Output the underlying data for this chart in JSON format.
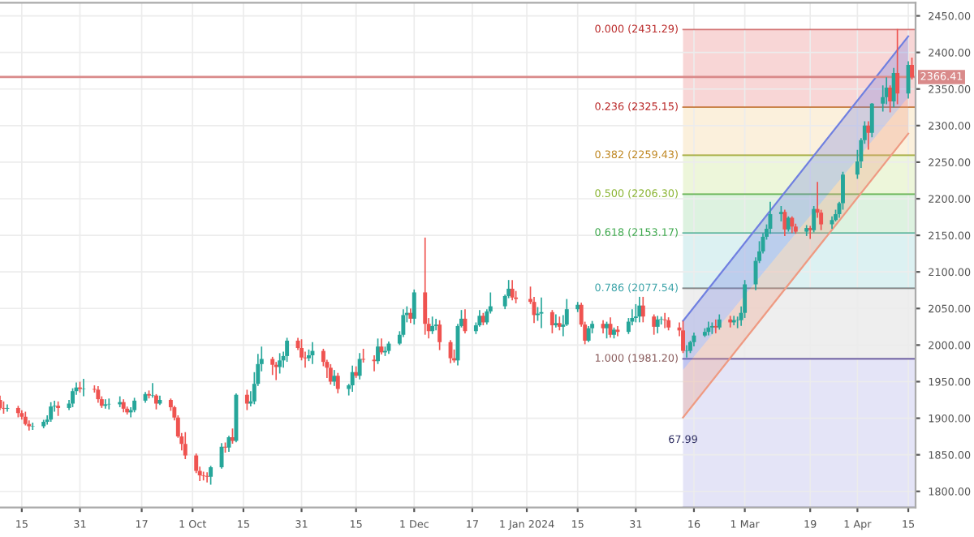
{
  "chart_data": {
    "type": "candlestick",
    "x": [
      "2023-08-09",
      "2023-08-10",
      "2023-08-11",
      "2023-08-14",
      "2023-08-15",
      "2023-08-16",
      "2023-08-17",
      "2023-08-18",
      "2023-08-21",
      "2023-08-22",
      "2023-08-23",
      "2023-08-24",
      "2023-08-25",
      "2023-08-28",
      "2023-08-29",
      "2023-08-30",
      "2023-08-31",
      "2023-09-01",
      "2023-09-04",
      "2023-09-05",
      "2023-09-06",
      "2023-09-07",
      "2023-09-08",
      "2023-09-11",
      "2023-09-12",
      "2023-09-13",
      "2023-09-14",
      "2023-09-15",
      "2023-09-18",
      "2023-09-19",
      "2023-09-20",
      "2023-09-21",
      "2023-09-22",
      "2023-09-25",
      "2023-09-26",
      "2023-09-27",
      "2023-09-28",
      "2023-09-29",
      "2023-10-02",
      "2023-10-03",
      "2023-10-04",
      "2023-10-05",
      "2023-10-06",
      "2023-10-09",
      "2023-10-10",
      "2023-10-11",
      "2023-10-12",
      "2023-10-13",
      "2023-10-16",
      "2023-10-17",
      "2023-10-18",
      "2023-10-19",
      "2023-10-20",
      "2023-10-23",
      "2023-10-24",
      "2023-10-25",
      "2023-10-26",
      "2023-10-27",
      "2023-10-30",
      "2023-10-31",
      "2023-11-01",
      "2023-11-02",
      "2023-11-03",
      "2023-11-06",
      "2023-11-07",
      "2023-11-08",
      "2023-11-09",
      "2023-11-10",
      "2023-11-13",
      "2023-11-14",
      "2023-11-15",
      "2023-11-16",
      "2023-11-17",
      "2023-11-20",
      "2023-11-21",
      "2023-11-22",
      "2023-11-23",
      "2023-11-24",
      "2023-11-27",
      "2023-11-28",
      "2023-11-29",
      "2023-11-30",
      "2023-12-01",
      "2023-12-04",
      "2023-12-05",
      "2023-12-06",
      "2023-12-07",
      "2023-12-08",
      "2023-12-11",
      "2023-12-12",
      "2023-12-13",
      "2023-12-14",
      "2023-12-15",
      "2023-12-18",
      "2023-12-19",
      "2023-12-20",
      "2023-12-21",
      "2023-12-22",
      "2023-12-26",
      "2023-12-27",
      "2023-12-28",
      "2023-12-29",
      "2024-01-02",
      "2024-01-03",
      "2024-01-04",
      "2024-01-05",
      "2024-01-08",
      "2024-01-09",
      "2024-01-10",
      "2024-01-11",
      "2024-01-12",
      "2024-01-15",
      "2024-01-16",
      "2024-01-17",
      "2024-01-18",
      "2024-01-19",
      "2024-01-22",
      "2024-01-23",
      "2024-01-24",
      "2024-01-25",
      "2024-01-26",
      "2024-01-29",
      "2024-01-30",
      "2024-01-31",
      "2024-02-01",
      "2024-02-02",
      "2024-02-05",
      "2024-02-06",
      "2024-02-07",
      "2024-02-08",
      "2024-02-09",
      "2024-02-12",
      "2024-02-13",
      "2024-02-14",
      "2024-02-15",
      "2024-02-16",
      "2024-02-19",
      "2024-02-20",
      "2024-02-21",
      "2024-02-22",
      "2024-02-23",
      "2024-02-26",
      "2024-02-27",
      "2024-02-28",
      "2024-02-29",
      "2024-03-01",
      "2024-03-04",
      "2024-03-05",
      "2024-03-06",
      "2024-03-07",
      "2024-03-08",
      "2024-03-11",
      "2024-03-12",
      "2024-03-13",
      "2024-03-14",
      "2024-03-15",
      "2024-03-18",
      "2024-03-19",
      "2024-03-20",
      "2024-03-21",
      "2024-03-22",
      "2024-03-25",
      "2024-03-26",
      "2024-03-27",
      "2024-03-28",
      "2024-04-01",
      "2024-04-02",
      "2024-04-03",
      "2024-04-04",
      "2024-04-05",
      "2024-04-08",
      "2024-04-09",
      "2024-04-10",
      "2024-04-11",
      "2024-04-12",
      "2024-04-15",
      "2024-04-16"
    ],
    "ohlc": [
      [
        1925,
        1930,
        1912,
        1914
      ],
      [
        1914,
        1922,
        1907,
        1913
      ],
      [
        1913,
        1918,
        1910,
        1914
      ],
      [
        1914,
        1916,
        1902,
        1907
      ],
      [
        1907,
        1910,
        1899,
        1902
      ],
      [
        1902,
        1908,
        1891,
        1892
      ],
      [
        1892,
        1896,
        1884,
        1889
      ],
      [
        1889,
        1893,
        1885,
        1889
      ],
      [
        1889,
        1897,
        1887,
        1895
      ],
      [
        1895,
        1903,
        1892,
        1898
      ],
      [
        1898,
        1921,
        1896,
        1916
      ],
      [
        1916,
        1923,
        1910,
        1917
      ],
      [
        1917,
        1922,
        1904,
        1914
      ],
      [
        1914,
        1924,
        1912,
        1920
      ],
      [
        1920,
        1940,
        1916,
        1937
      ],
      [
        1937,
        1948,
        1933,
        1942
      ],
      [
        1942,
        1949,
        1936,
        1940
      ],
      [
        1940,
        1953,
        1931,
        1940
      ],
      [
        1940,
        1944,
        1936,
        1939
      ],
      [
        1939,
        1943,
        1922,
        1926
      ],
      [
        1926,
        1929,
        1915,
        1917
      ],
      [
        1917,
        1925,
        1914,
        1919
      ],
      [
        1919,
        1926,
        1913,
        1919
      ],
      [
        1919,
        1929,
        1916,
        1922
      ],
      [
        1922,
        1925,
        1909,
        1913
      ],
      [
        1913,
        1915,
        1906,
        1908
      ],
      [
        1908,
        1914,
        1902,
        1911
      ],
      [
        1911,
        1927,
        1909,
        1924
      ],
      [
        1924,
        1935,
        1922,
        1933
      ],
      [
        1933,
        1937,
        1928,
        1931
      ],
      [
        1931,
        1947,
        1929,
        1931
      ],
      [
        1931,
        1932,
        1913,
        1920
      ],
      [
        1920,
        1930,
        1919,
        1925
      ],
      [
        1925,
        1926,
        1911,
        1915
      ],
      [
        1915,
        1916,
        1898,
        1901
      ],
      [
        1901,
        1903,
        1874,
        1875
      ],
      [
        1875,
        1879,
        1857,
        1865
      ],
      [
        1865,
        1880,
        1845,
        1849
      ],
      [
        1849,
        1851,
        1826,
        1828
      ],
      [
        1828,
        1833,
        1815,
        1822
      ],
      [
        1822,
        1826,
        1816,
        1821
      ],
      [
        1821,
        1825,
        1813,
        1820
      ],
      [
        1820,
        1834,
        1810,
        1833
      ],
      [
        1833,
        1865,
        1832,
        1861
      ],
      [
        1861,
        1866,
        1854,
        1860
      ],
      [
        1860,
        1875,
        1855,
        1874
      ],
      [
        1874,
        1885,
        1866,
        1869
      ],
      [
        1869,
        1933,
        1868,
        1932
      ],
      [
        1932,
        1938,
        1912,
        1920
      ],
      [
        1920,
        1936,
        1917,
        1923
      ],
      [
        1923,
        1962,
        1920,
        1947
      ],
      [
        1947,
        1987,
        1945,
        1974
      ],
      [
        1974,
        1997,
        1965,
        1981
      ],
      [
        1981,
        1983,
        1960,
        1973
      ],
      [
        1973,
        1976,
        1953,
        1970
      ],
      [
        1970,
        1988,
        1962,
        1979
      ],
      [
        1979,
        1990,
        1970,
        1985
      ],
      [
        1985,
        2009,
        1978,
        2006
      ],
      [
        2006,
        2009,
        1994,
        1996
      ],
      [
        1996,
        2007,
        1980,
        1983
      ],
      [
        1983,
        1990,
        1970,
        1982
      ],
      [
        1982,
        1993,
        1979,
        1986
      ],
      [
        1986,
        2003,
        1975,
        1992
      ],
      [
        1992,
        1994,
        1972,
        1977
      ],
      [
        1977,
        1979,
        1956,
        1969
      ],
      [
        1969,
        1973,
        1947,
        1950
      ],
      [
        1950,
        1965,
        1945,
        1958
      ],
      [
        1958,
        1961,
        1935,
        1940
      ],
      [
        1940,
        1946,
        1932,
        1945
      ],
      [
        1945,
        1971,
        1937,
        1963
      ],
      [
        1963,
        1970,
        1956,
        1958
      ],
      [
        1958,
        1988,
        1954,
        1981
      ],
      [
        1981,
        1994,
        1977,
        1980
      ],
      [
        1980,
        1985,
        1965,
        1978
      ],
      [
        1978,
        2008,
        1975,
        1998
      ],
      [
        1998,
        2008,
        1988,
        1990
      ],
      [
        1990,
        1997,
        1986,
        1992
      ],
      [
        1992,
        2004,
        1989,
        2002
      ],
      [
        2002,
        2018,
        2001,
        2014
      ],
      [
        2014,
        2048,
        2012,
        2041
      ],
      [
        2041,
        2052,
        2032,
        2044
      ],
      [
        2044,
        2049,
        2031,
        2036
      ],
      [
        2036,
        2075,
        2029,
        2072
      ],
      [
        2072,
        2146,
        2015,
        2029
      ],
      [
        2029,
        2036,
        2010,
        2019
      ],
      [
        2019,
        2038,
        2016,
        2026
      ],
      [
        2026,
        2035,
        2021,
        2028
      ],
      [
        2028,
        2033,
        1994,
        2004
      ],
      [
        2004,
        2006,
        1976,
        1982
      ],
      [
        1982,
        1993,
        1977,
        1979
      ],
      [
        1979,
        2028,
        1973,
        2026
      ],
      [
        2026,
        2047,
        2025,
        2036
      ],
      [
        2036,
        2048,
        2017,
        2019
      ],
      [
        2019,
        2030,
        2016,
        2027
      ],
      [
        2027,
        2047,
        2026,
        2040
      ],
      [
        2040,
        2043,
        2028,
        2031
      ],
      [
        2031,
        2048,
        2029,
        2046
      ],
      [
        2046,
        2071,
        2044,
        2053
      ],
      [
        2053,
        2068,
        2050,
        2067
      ],
      [
        2067,
        2088,
        2065,
        2077
      ],
      [
        2077,
        2088,
        2062,
        2065
      ],
      [
        2065,
        2073,
        2058,
        2063
      ],
      [
        2063,
        2079,
        2057,
        2059
      ],
      [
        2059,
        2065,
        2031,
        2041
      ],
      [
        2041,
        2051,
        2034,
        2043
      ],
      [
        2043,
        2064,
        2024,
        2045
      ],
      [
        2045,
        2047,
        2017,
        2027
      ],
      [
        2027,
        2041,
        2025,
        2030
      ],
      [
        2030,
        2038,
        2021,
        2025
      ],
      [
        2025,
        2040,
        2013,
        2028
      ],
      [
        2028,
        2062,
        2027,
        2049
      ],
      [
        2049,
        2058,
        2046,
        2055
      ],
      [
        2055,
        2057,
        2026,
        2028
      ],
      [
        2028,
        2031,
        2002,
        2006
      ],
      [
        2006,
        2025,
        2005,
        2023
      ],
      [
        2023,
        2032,
        2017,
        2029
      ],
      [
        2029,
        2033,
        2017,
        2023
      ],
      [
        2023,
        2031,
        2010,
        2029
      ],
      [
        2029,
        2037,
        2011,
        2014
      ],
      [
        2014,
        2023,
        2010,
        2021
      ],
      [
        2021,
        2025,
        2013,
        2018
      ],
      [
        2018,
        2036,
        2016,
        2032
      ],
      [
        2032,
        2048,
        2028,
        2037
      ],
      [
        2037,
        2055,
        2032,
        2039
      ],
      [
        2039,
        2065,
        2032,
        2054
      ],
      [
        2054,
        2065,
        2032,
        2039
      ],
      [
        2039,
        2041,
        2015,
        2025
      ],
      [
        2025,
        2039,
        2017,
        2035
      ],
      [
        2035,
        2038,
        2029,
        2035
      ],
      [
        2035,
        2043,
        2024,
        2034
      ],
      [
        2034,
        2037,
        2021,
        2024
      ],
      [
        2024,
        2030,
        2013,
        2020
      ],
      [
        2020,
        2032,
        1990,
        1992
      ],
      [
        1992,
        1999,
        1984,
        1992
      ],
      [
        1992,
        2005,
        1990,
        2004
      ],
      [
        2004,
        2016,
        1999,
        2013
      ],
      [
        2013,
        2022,
        2012,
        2018
      ],
      [
        2018,
        2031,
        2014,
        2024
      ],
      [
        2024,
        2030,
        2016,
        2026
      ],
      [
        2026,
        2034,
        2017,
        2024
      ],
      [
        2024,
        2041,
        2022,
        2035
      ],
      [
        2035,
        2039,
        2025,
        2031
      ],
      [
        2031,
        2039,
        2028,
        2034
      ],
      [
        2034,
        2038,
        2024,
        2034
      ],
      [
        2034,
        2052,
        2027,
        2044
      ],
      [
        2044,
        2088,
        2038,
        2083
      ],
      [
        2083,
        2119,
        2076,
        2115
      ],
      [
        2115,
        2141,
        2113,
        2128
      ],
      [
        2128,
        2152,
        2126,
        2148
      ],
      [
        2148,
        2164,
        2145,
        2159
      ],
      [
        2159,
        2195,
        2153,
        2179
      ],
      [
        2179,
        2189,
        2170,
        2182
      ],
      [
        2182,
        2184,
        2150,
        2158
      ],
      [
        2158,
        2175,
        2156,
        2174
      ],
      [
        2174,
        2175,
        2154,
        2162
      ],
      [
        2162,
        2165,
        2153,
        2155
      ],
      [
        2155,
        2163,
        2150,
        2160
      ],
      [
        2160,
        2162,
        2146,
        2157
      ],
      [
        2157,
        2189,
        2155,
        2186
      ],
      [
        2186,
        2222,
        2175,
        2181
      ],
      [
        2181,
        2184,
        2158,
        2165
      ],
      [
        2165,
        2175,
        2160,
        2171
      ],
      [
        2171,
        2184,
        2170,
        2179
      ],
      [
        2179,
        2195,
        2175,
        2194
      ],
      [
        2194,
        2236,
        2186,
        2233
      ],
      [
        2233,
        2266,
        2228,
        2251
      ],
      [
        2251,
        2282,
        2243,
        2280
      ],
      [
        2280,
        2305,
        2276,
        2300
      ],
      [
        2300,
        2305,
        2268,
        2290
      ],
      [
        2290,
        2330,
        2285,
        2330
      ],
      [
        2330,
        2354,
        2320,
        2339
      ],
      [
        2339,
        2365,
        2330,
        2352
      ],
      [
        2352,
        2354,
        2319,
        2333
      ],
      [
        2333,
        2378,
        2326,
        2372
      ],
      [
        2372,
        2431,
        2330,
        2344
      ],
      [
        2344,
        2387,
        2338,
        2383
      ],
      [
        2383,
        2392,
        2364,
        2366
      ]
    ],
    "series": [
      {
        "type": "line",
        "x": [
          "2024-02-13",
          "2024-04-15"
        ],
        "values": [
          2033,
          2422
        ],
        "lower": [
          1966,
          2339
        ],
        "upper": [
          2033,
          2422
        ],
        "color": "#6f7fe0"
      },
      {
        "type": "line",
        "x": [
          "2024-02-13",
          "2024-04-15"
        ],
        "values": [
          1901,
          2289
        ],
        "lower": [
          1901,
          2289
        ],
        "upper": [
          1966,
          2339
        ],
        "color": "#ee9a82"
      }
    ],
    "bands": [
      {
        "axis": "y",
        "from": 2325.15,
        "to": 2431.29,
        "color": "#f8d6d6"
      },
      {
        "axis": "y",
        "from": 2259.43,
        "to": 2325.15,
        "color": "#fbf0dc"
      },
      {
        "axis": "y",
        "from": 2206.3,
        "to": 2259.43,
        "color": "#edf6da"
      },
      {
        "axis": "y",
        "from": 2153.17,
        "to": 2206.3,
        "color": "#ddf2e0"
      },
      {
        "axis": "y",
        "from": 2077.54,
        "to": 2153.17,
        "color": "#dcf1f2"
      },
      {
        "axis": "y",
        "from": 1981.2,
        "to": 2077.54,
        "color": "#eeeeee"
      },
      {
        "axis": "y",
        "from": 1778,
        "to": 1981.2,
        "color": "#e4e4f7"
      }
    ],
    "ref_lines": [
      {
        "axis": "y",
        "value": 2366.41,
        "label": "2366.41",
        "color": "#d98a8a"
      }
    ],
    "annotations": [
      {
        "text": "0.000 (2431.29)",
        "x": "2024-02-13",
        "y": 2431.29
      },
      {
        "text": "0.236 (2325.15)",
        "x": "2024-02-13",
        "y": 2325.15
      },
      {
        "text": "0.382 (2259.43)",
        "x": "2024-02-13",
        "y": 2259.43
      },
      {
        "text": "0.500 (2206.30)",
        "x": "2024-02-13",
        "y": 2206.3
      },
      {
        "text": "0.618 (2153.17)",
        "x": "2024-02-13",
        "y": 2153.17
      },
      {
        "text": "0.786 (2077.54)",
        "x": "2024-02-13",
        "y": 2077.54
      },
      {
        "text": "1.000 (1981.20)",
        "x": "2024-02-13",
        "y": 1981.2
      },
      {
        "text": "67.99",
        "x": "2024-02-13",
        "y": 1901
      }
    ],
    "xlim": [
      "2023-08-09",
      "2024-04-17"
    ],
    "xticks": [
      {
        "value": "2023-08-15",
        "label": "15"
      },
      {
        "value": "2023-08-31",
        "label": "31"
      },
      {
        "value": "2023-09-17",
        "label": "17"
      },
      {
        "value": "2023-10-01",
        "label": "1 Oct"
      },
      {
        "value": "2023-10-15",
        "label": "15"
      },
      {
        "value": "2023-10-31",
        "label": "31"
      },
      {
        "value": "2023-11-15",
        "label": "15"
      },
      {
        "value": "2023-12-01",
        "label": "1 Dec"
      },
      {
        "value": "2023-12-17",
        "label": "17"
      },
      {
        "value": "2024-01-01",
        "label": "1 Jan 2024"
      },
      {
        "value": "2024-01-15",
        "label": "15"
      },
      {
        "value": "2024-01-31",
        "label": "31"
      },
      {
        "value": "2024-02-16",
        "label": "16"
      },
      {
        "value": "2024-03-01",
        "label": "1 Mar"
      },
      {
        "value": "2024-03-19",
        "label": "19"
      },
      {
        "value": "2024-04-01",
        "label": "1 Apr"
      },
      {
        "value": "2024-04-15",
        "label": "15"
      }
    ],
    "ylim": [
      1778,
      2468
    ],
    "yticks": [
      {
        "value": 1800,
        "label": "1800.00"
      },
      {
        "value": 1850,
        "label": "1850.00"
      },
      {
        "value": 1900,
        "label": "1900.00"
      },
      {
        "value": 1950,
        "label": "1950.00"
      },
      {
        "value": 2000,
        "label": "2000.00"
      },
      {
        "value": 2050,
        "label": "2050.00"
      },
      {
        "value": 2100,
        "label": "2100.00"
      },
      {
        "value": 2150,
        "label": "2150.00"
      },
      {
        "value": 2200,
        "label": "2200.00"
      },
      {
        "value": 2250,
        "label": "2250.00"
      },
      {
        "value": 2300,
        "label": "2300.00"
      },
      {
        "value": 2350,
        "label": "2350.00"
      },
      {
        "value": 2400,
        "label": "2400.00"
      },
      {
        "value": 2450,
        "label": "2450.00"
      }
    ],
    "grid": true
  }
}
